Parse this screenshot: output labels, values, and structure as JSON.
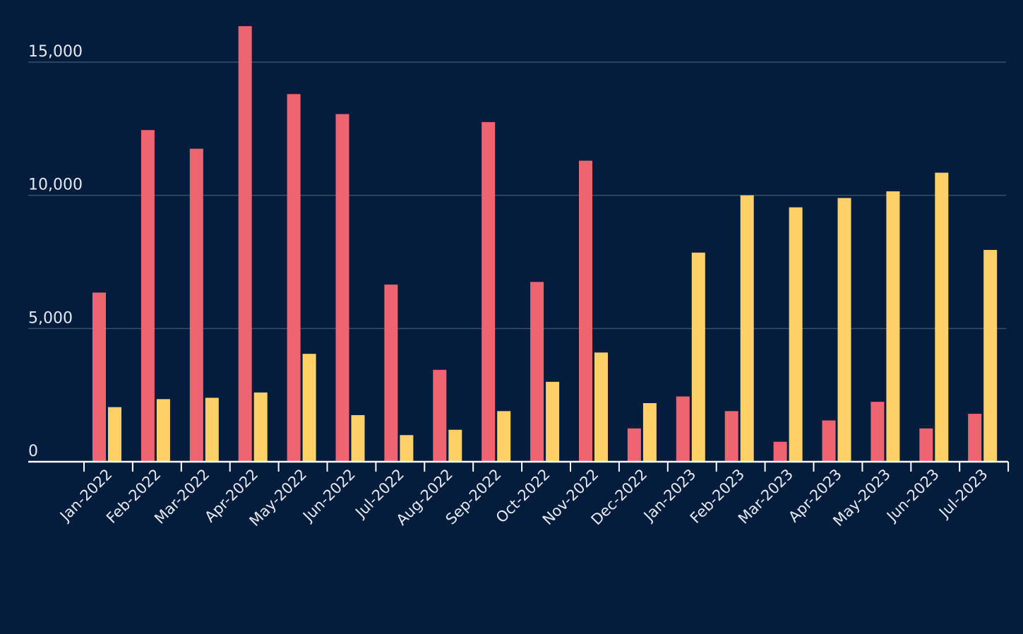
{
  "chart_data": {
    "type": "bar",
    "title": "",
    "xlabel": "",
    "ylabel": "",
    "categories": [
      "Jan-2022",
      "Feb-2022",
      "Mar-2022",
      "Apr-2022",
      "May-2022",
      "Jun-2022",
      "Jul-2022",
      "Aug-2022",
      "Sep-2022",
      "Oct-2022",
      "Nov-2022",
      "Dec-2022",
      "Jan-2023",
      "Feb-2023",
      "Mar-2023",
      "Apr-2023",
      "May-2023",
      "Jun-2023",
      "Jul-2023"
    ],
    "series": [
      {
        "color": "#ee6470",
        "values": [
          6350,
          12450,
          11750,
          16350,
          13800,
          13050,
          6650,
          3450,
          12750,
          6750,
          11300,
          1250,
          2450,
          1900,
          750,
          1550,
          2250,
          1250,
          1800
        ]
      },
      {
        "color": "#fdd068",
        "values": [
          2050,
          2350,
          2400,
          2600,
          4050,
          1750,
          1000,
          1200,
          1900,
          3000,
          4100,
          2200,
          7850,
          10000,
          9550,
          9900,
          10150,
          10850,
          7950
        ]
      }
    ],
    "ylim": [
      0,
      16500
    ],
    "yticks": [
      {
        "value": 0,
        "label": "0"
      },
      {
        "value": 5000,
        "label": "5,000"
      },
      {
        "value": 10000,
        "label": "10,000"
      },
      {
        "value": 15000,
        "label": "15,000"
      }
    ],
    "grid": true,
    "legend": "none",
    "colors": {
      "background": "#051d3d",
      "gridline": "#3b5068",
      "axis": "#ffffff",
      "tick_label": "#e6eaf0"
    }
  }
}
